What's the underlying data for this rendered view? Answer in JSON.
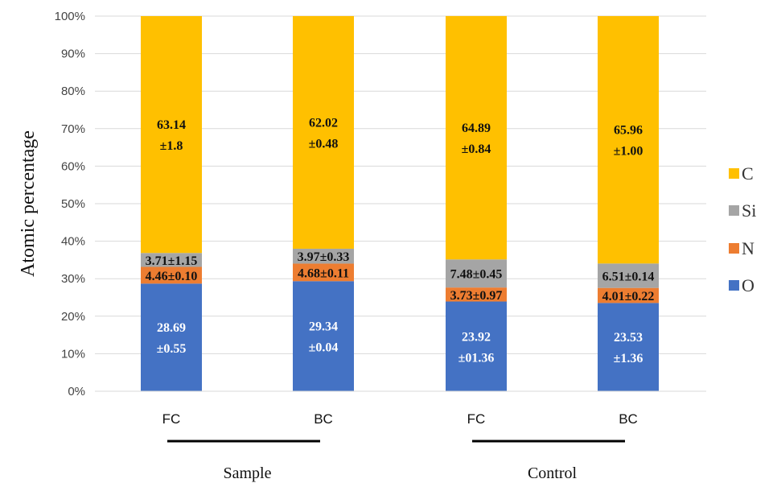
{
  "chart_data": {
    "type": "bar",
    "stacked": true,
    "percent_axis": true,
    "ylabel": "Atomic percentage",
    "ylim": [
      0,
      100
    ],
    "y_ticks": [
      "0%",
      "10%",
      "20%",
      "30%",
      "40%",
      "50%",
      "60%",
      "70%",
      "80%",
      "90%",
      "100%"
    ],
    "grid": true,
    "categories": [
      "FC",
      "BC",
      "FC",
      "BC"
    ],
    "groups": [
      {
        "label": "Sample",
        "categories": [
          0,
          1
        ]
      },
      {
        "label": "Control",
        "categories": [
          2,
          3
        ]
      }
    ],
    "series": [
      {
        "name": "O",
        "color": "#4472C4",
        "label_color": "#ffffff",
        "values": [
          28.69,
          29.34,
          23.92,
          23.53
        ],
        "labels": [
          [
            "28.69",
            "±0.55"
          ],
          [
            "29.34",
            "±0.04"
          ],
          [
            "23.92",
            "±01.36"
          ],
          [
            "23.53",
            "±1.36"
          ]
        ]
      },
      {
        "name": "N",
        "color": "#ED7D31",
        "label_color": "#111111",
        "values": [
          4.46,
          4.68,
          3.73,
          4.01
        ],
        "labels": [
          [
            "4.46±0.10"
          ],
          [
            "4.68±0.11"
          ],
          [
            "3.73±0.97"
          ],
          [
            "4.01±0.22"
          ]
        ]
      },
      {
        "name": "Si",
        "color": "#A5A5A5",
        "label_color": "#111111",
        "values": [
          3.71,
          3.97,
          7.48,
          6.51
        ],
        "labels": [
          [
            "3.71±1.15"
          ],
          [
            "3.97±0.33"
          ],
          [
            "7.48±0.45"
          ],
          [
            "6.51±0.14"
          ]
        ]
      },
      {
        "name": "C",
        "color": "#FFC000",
        "label_color": "#111111",
        "values": [
          63.14,
          62.02,
          64.89,
          65.96
        ],
        "labels": [
          [
            "63.14",
            "±1.8"
          ],
          [
            "62.02",
            "±0.48"
          ],
          [
            "64.89",
            "±0.84"
          ],
          [
            "65.96",
            "±1.00"
          ]
        ]
      }
    ],
    "legend": {
      "placement": "right",
      "order": [
        "C",
        "Si",
        "N",
        "O"
      ]
    }
  }
}
